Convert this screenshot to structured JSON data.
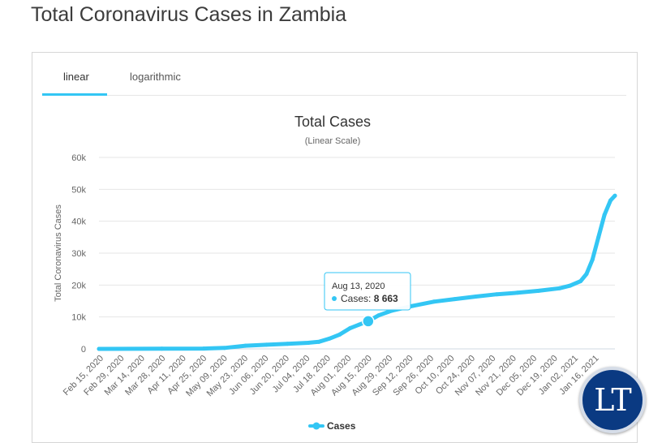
{
  "page": {
    "title": "Total Coronavirus Cases in Zambia"
  },
  "tabs": [
    {
      "label": "linear",
      "active": true
    },
    {
      "label": "logarithmic",
      "active": false
    }
  ],
  "tooltip": {
    "date": "Aug 13, 2020",
    "series": "Cases",
    "value_text": "8 663"
  },
  "logo": {
    "text": "LT"
  },
  "colors": {
    "series": "#33c6f4",
    "logo_bg": "#0a3a82"
  },
  "chart_data": {
    "type": "line",
    "title": "Total Cases",
    "subtitle": "(Linear Scale)",
    "ylabel": "Total Coronavirus Cases",
    "xlabel": "",
    "ylim": [
      0,
      60000
    ],
    "yticks": [
      "0",
      "10k",
      "20k",
      "30k",
      "40k",
      "50k",
      "60k"
    ],
    "xticks": [
      "Feb 15, 2020",
      "Feb 29, 2020",
      "Mar 14, 2020",
      "Mar 28, 2020",
      "Apr 11, 2020",
      "Apr 25, 2020",
      "May 09, 2020",
      "May 23, 2020",
      "Jun 06, 2020",
      "Jun 20, 2020",
      "Jul 04, 2020",
      "Jul 18, 2020",
      "Aug 01, 2020",
      "Aug 15, 2020",
      "Aug 29, 2020",
      "Sep 12, 2020",
      "Sep 26, 2020",
      "Oct 10, 2020",
      "Oct 24, 2020",
      "Nov 07, 2020",
      "Nov 21, 2020",
      "Dec 05, 2020",
      "Dec 19, 2020",
      "Jan 02, 2021",
      "Jan 16, 2021"
    ],
    "legend": {
      "position": "bottom-center"
    },
    "grid": true,
    "series": [
      {
        "name": "Cases",
        "x": [
          "2020-02-15",
          "2020-03-28",
          "2020-04-25",
          "2020-05-09",
          "2020-05-23",
          "2020-06-06",
          "2020-06-20",
          "2020-07-04",
          "2020-07-11",
          "2020-07-18",
          "2020-07-25",
          "2020-08-01",
          "2020-08-07",
          "2020-08-13",
          "2020-08-20",
          "2020-08-29",
          "2020-09-12",
          "2020-09-26",
          "2020-10-10",
          "2020-10-24",
          "2020-11-07",
          "2020-11-21",
          "2020-12-05",
          "2020-12-19",
          "2020-12-26",
          "2021-01-02",
          "2021-01-06",
          "2021-01-10",
          "2021-01-14",
          "2021-01-18",
          "2021-01-22",
          "2021-01-25"
        ],
        "y": [
          0,
          50,
          100,
          300,
          1000,
          1300,
          1600,
          1900,
          2200,
          3200,
          4500,
          6500,
          7600,
          8663,
          10500,
          12000,
          13500,
          14800,
          15600,
          16400,
          17100,
          17600,
          18200,
          19000,
          19800,
          21200,
          23500,
          28000,
          35000,
          42000,
          46500,
          48000
        ]
      }
    ],
    "highlight": {
      "x": "2020-08-13",
      "y": 8663
    }
  }
}
